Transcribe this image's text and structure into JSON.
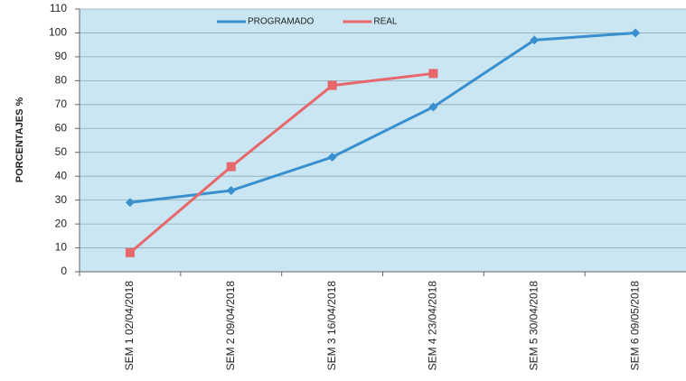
{
  "chart_data": {
    "type": "line",
    "y_label": "PORCENTAJES %",
    "categories": [
      "SEM 1 02/04/2018",
      "SEM 2 09/04/2018",
      "SEM 3 16/04/2018",
      "SEM 4 23/04/2018",
      "SEM 5 30/04/2018",
      "SEM 6 09/05/2018"
    ],
    "series": [
      {
        "name": "PROGRAMADO",
        "color": "#3a8fcf",
        "marker": "diamond",
        "values": [
          29,
          34,
          48,
          69,
          97,
          100
        ]
      },
      {
        "name": "REAL",
        "color": "#e8676b",
        "marker": "square",
        "values": [
          8,
          44,
          78,
          83,
          null,
          null
        ]
      }
    ],
    "ylim": [
      0,
      110
    ],
    "yticks": [
      0,
      10,
      20,
      30,
      40,
      50,
      60,
      70,
      80,
      90,
      100,
      110
    ],
    "grid": true,
    "legend": "top"
  }
}
